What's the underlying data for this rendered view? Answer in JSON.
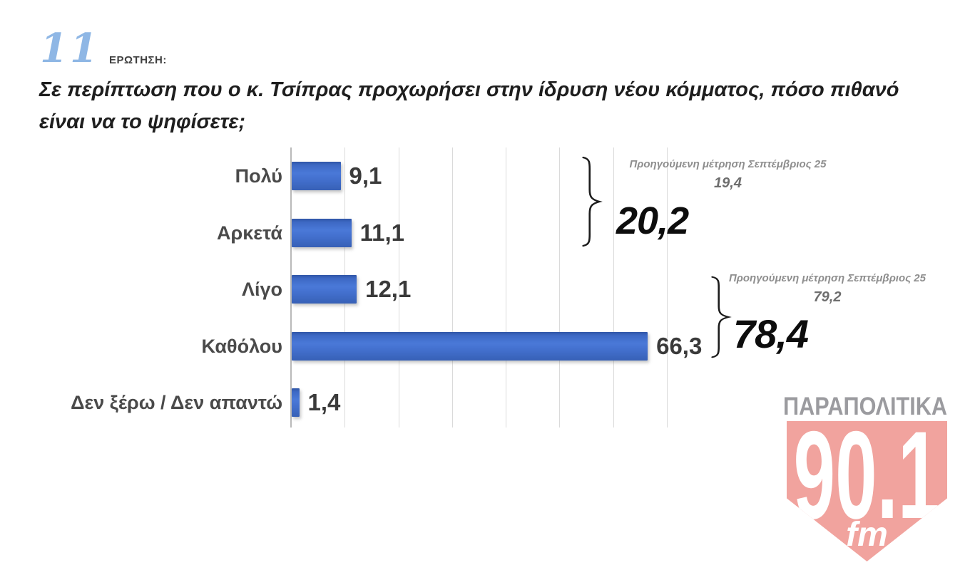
{
  "header": {
    "question_number": "11",
    "question_label": "ΕΡΩΤΗΣΗ:",
    "title": "Σε περίπτωση που ο κ. Τσίπρας προχωρήσει στην ίδρυση νέου κόμματος, πόσο πιθανό\nείναι να το ψηφίσετε;"
  },
  "chart_data": {
    "type": "bar",
    "orientation": "horizontal",
    "title": "Σε περίπτωση που ο κ. Τσίπρας προχωρήσει στην ίδρυση νέου κόμματος, πόσο πιθανό είναι να το ψηφίσετε;",
    "categories": [
      "Πολύ",
      "Αρκετά",
      "Λίγο",
      "Καθόλου",
      "Δεν ξέρω / Δεν απαντώ"
    ],
    "values": [
      9.1,
      11.1,
      12.1,
      66.3,
      1.4
    ],
    "value_labels": [
      "9,1",
      "11,1",
      "12,1",
      "66,3",
      "1,4"
    ],
    "xlim": [
      0,
      70
    ],
    "gridline_step": 10,
    "grid": true,
    "legend": "none",
    "bar_color": "#3f6ac6",
    "annotations": [
      {
        "grouped_categories": [
          "Πολύ",
          "Αρκετά"
        ],
        "label": "Προηγούμενη μέτρηση Σεπτέμβριος 25",
        "previous_value": 19.4,
        "previous_value_label": "19,4",
        "current_total": 20.2,
        "current_total_label": "20,2"
      },
      {
        "grouped_categories": [
          "Λίγο",
          "Καθόλου"
        ],
        "label": "Προηγούμενη μέτρηση Σεπτέμβριος 25",
        "previous_value": 79.2,
        "previous_value_label": "79,2",
        "current_total": 78.4,
        "current_total_label": "78,4"
      }
    ]
  },
  "logo": {
    "station_name": "ΠΑΡΑΠΟΛΙΤΙΚΑ",
    "frequency": "90.1",
    "band": "fm",
    "badge_color": "#f1a39e",
    "wordmark_color": "#9b9b9f"
  }
}
